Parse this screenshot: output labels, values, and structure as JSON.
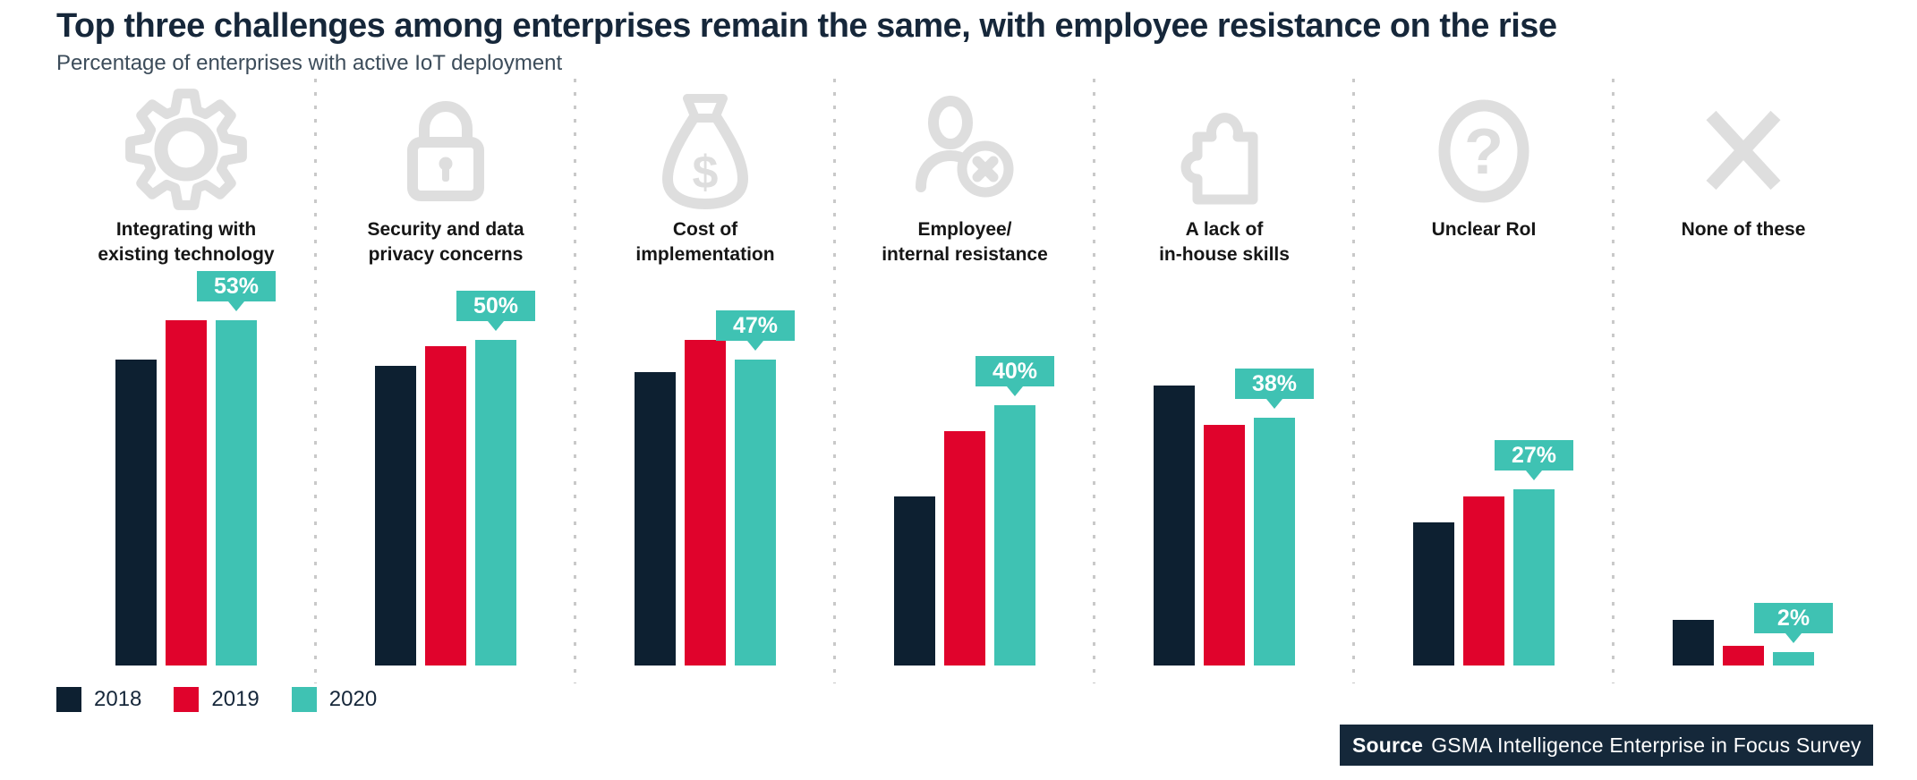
{
  "source": {
    "prefix": "Source",
    "text": "GSMA Intelligence Enterprise in Focus Survey",
    "background": "#15283a"
  },
  "chart_data": {
    "type": "bar",
    "title": "Top three challenges among enterprises remain the same, with employee resistance on the rise",
    "subtitle": "Percentage of enterprises with active IoT deployment",
    "unit": "%",
    "categories": [
      "Integrating with existing technology",
      "Security and data privacy concerns",
      "Cost of implementation",
      "Employee/ internal resistance",
      "A lack of in-house skills",
      "Unclear RoI",
      "None of these"
    ],
    "category_label_lines": [
      [
        "Integrating with",
        "existing technology"
      ],
      [
        "Security and data",
        "privacy concerns"
      ],
      [
        "Cost of",
        "implementation"
      ],
      [
        "Employee/",
        "internal resistance"
      ],
      [
        "A lack of",
        "in-house skills"
      ],
      [
        "Unclear RoI"
      ],
      [
        "None of these"
      ]
    ],
    "category_icons": [
      "gear",
      "lock",
      "money-bag",
      "user-x",
      "puzzle",
      "question",
      "x-cross"
    ],
    "icon_color": "#dedede",
    "series": [
      {
        "name": "2018",
        "color": "#0d2031",
        "values": [
          47,
          46,
          45,
          26,
          43,
          22,
          7
        ]
      },
      {
        "name": "2019",
        "color": "#e0032c",
        "values": [
          53,
          49,
          50,
          36,
          37,
          26,
          3
        ]
      },
      {
        "name": "2020",
        "color": "#3fc2b3",
        "values": [
          53,
          50,
          47,
          40,
          38,
          27,
          2
        ]
      }
    ],
    "data_labels": {
      "series": "2020",
      "values": [
        "53%",
        "50%",
        "47%",
        "40%",
        "38%",
        "27%",
        "2%"
      ],
      "style": "teal-callout-badge",
      "badge_color": "#3fc2b3",
      "text_color": "#ffffff"
    },
    "ylim": [
      0,
      60
    ],
    "grid": false,
    "axes_visible": false,
    "legend_position": "bottom-left"
  }
}
